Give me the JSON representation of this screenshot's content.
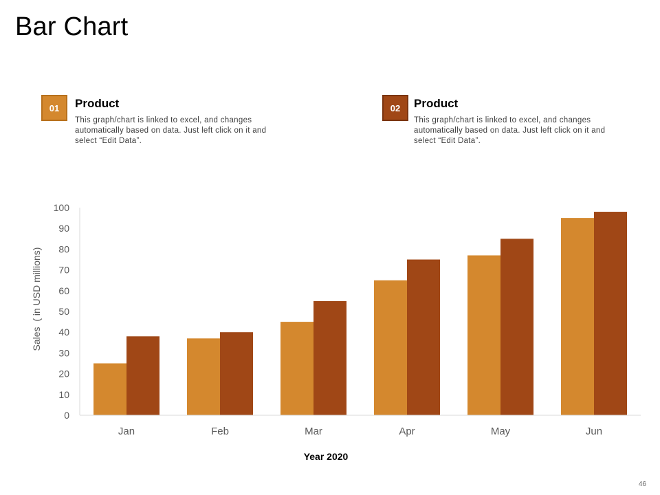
{
  "page": {
    "title": "Bar Chart",
    "page_number": "46"
  },
  "legend": [
    {
      "number": "01",
      "heading": "Product",
      "description": "This graph/chart is linked to excel, and changes automatically based on data. Just left click on it and select “Edit Data”.",
      "color": "#d4882e"
    },
    {
      "number": "02",
      "heading": "Product",
      "description": "This graph/chart is linked to excel, and changes automatically based on data. Just left click on it and select “Edit Data”.",
      "color": "#a04716"
    }
  ],
  "chart_data": {
    "type": "bar",
    "title": "",
    "xlabel": "Year 2020",
    "ylabel": "Sales  ( in USD millions)",
    "ylim": [
      0,
      100
    ],
    "yticks": [
      0,
      10,
      20,
      30,
      40,
      50,
      60,
      70,
      80,
      90,
      100
    ],
    "grid": false,
    "categories": [
      "Jan",
      "Feb",
      "Mar",
      "Apr",
      "May",
      "Jun"
    ],
    "series": [
      {
        "name": "Product 01",
        "values": [
          25,
          37,
          45,
          65,
          77,
          95
        ],
        "color": "#d4882e"
      },
      {
        "name": "Product 02",
        "values": [
          38,
          40,
          55,
          75,
          85,
          98
        ],
        "color": "#a04716"
      }
    ]
  }
}
